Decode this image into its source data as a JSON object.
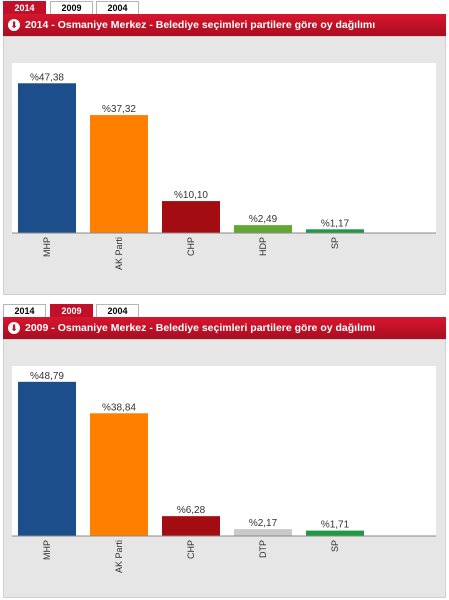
{
  "tabs": [
    "2014",
    "2009",
    "2004"
  ],
  "chart_data": [
    {
      "type": "bar",
      "title": "2014 - Osmaniye Merkez - Belediye seçimleri partilere göre oy dağılımı",
      "active_tab": "2014",
      "categories": [
        "MHP",
        "AK Parti",
        "CHP",
        "HDP",
        "SP"
      ],
      "values": [
        47.38,
        37.32,
        10.1,
        2.49,
        1.17
      ],
      "value_labels": [
        "%47,38",
        "%37,32",
        "%10,10",
        "%2,49",
        "%1,17"
      ],
      "colors": [
        "#1b4e8a",
        "#ff7f00",
        "#a30d12",
        "#5fa832",
        "#1f9a44"
      ],
      "ylim": [
        0,
        50
      ],
      "grid": false,
      "legend": "none"
    },
    {
      "type": "bar",
      "title": "2009 - Osmaniye Merkez - Belediye seçimleri partilere göre oy dağılımı",
      "active_tab": "2009",
      "categories": [
        "MHP",
        "AK Parti",
        "CHP",
        "DTP",
        "SP"
      ],
      "values": [
        48.79,
        38.84,
        6.28,
        2.17,
        1.71
      ],
      "value_labels": [
        "%48,79",
        "%38,84",
        "%6,28",
        "%2,17",
        "%1,71"
      ],
      "colors": [
        "#1b4e8a",
        "#ff7f00",
        "#a30d12",
        "#c9c9c9",
        "#1f9a44"
      ],
      "ylim": [
        0,
        50
      ],
      "grid": false,
      "legend": "none"
    }
  ]
}
